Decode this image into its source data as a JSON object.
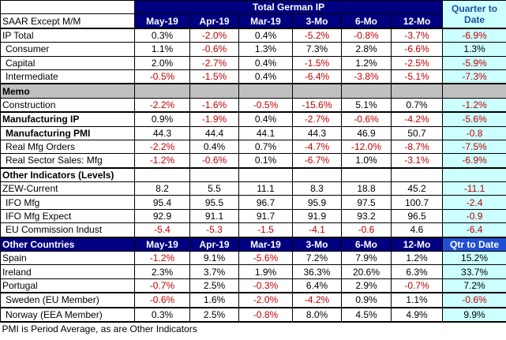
{
  "title": "Total German IP",
  "subtitle": "SAAR Except M/M",
  "columns": [
    "May-19",
    "Apr-19",
    "Mar-19",
    "3-Mo",
    "6-Mo",
    "12-Mo"
  ],
  "qtd_header": "Quarter to Date",
  "groups": [
    {
      "rows": [
        {
          "label": "IP Total",
          "values": [
            "0.3%",
            "-2.0%",
            "0.4%",
            "-5.2%",
            "-0.8%",
            "-3.7%"
          ],
          "qtd": "-6.9%"
        },
        {
          "label": "Consumer",
          "indent": true,
          "values": [
            "1.1%",
            "-0.6%",
            "1.3%",
            "7.3%",
            "2.8%",
            "-6.6%"
          ],
          "qtd": "1.3%"
        },
        {
          "label": "Capital",
          "indent": true,
          "values": [
            "2.0%",
            "-2.7%",
            "0.4%",
            "-1.5%",
            "1.2%",
            "-2.5%"
          ],
          "qtd": "-5.9%"
        },
        {
          "label": "Intermediate",
          "indent": true,
          "values": [
            "-0.5%",
            "-1.5%",
            "0.4%",
            "-6.4%",
            "-3.8%",
            "-5.1%"
          ],
          "qtd": "-7.3%"
        }
      ]
    },
    {
      "heading": "Memo",
      "heading_color": "#c0c0c0",
      "rows": [
        {
          "label": "Construction",
          "values": [
            "-2.2%",
            "-1.6%",
            "-0.5%",
            "-15.6%",
            "5.1%",
            "0.7%"
          ],
          "qtd": "-1.2%"
        }
      ]
    },
    {
      "rows": [
        {
          "label": "Manufacturing IP",
          "bold": true,
          "values": [
            "0.9%",
            "-1.9%",
            "0.4%",
            "-2.7%",
            "-0.6%",
            "-4.2%"
          ],
          "qtd": "-5.6%"
        },
        {
          "label": "Manufacturing PMI",
          "bold": true,
          "indent": true,
          "values": [
            "44.3",
            "44.4",
            "44.1",
            "44.3",
            "46.9",
            "50.7"
          ],
          "qtd": "-0.8"
        },
        {
          "label": "Real Mfg Orders",
          "indent": true,
          "values": [
            "-2.2%",
            "0.4%",
            "0.7%",
            "-4.7%",
            "-12.0%",
            "-8.7%"
          ],
          "qtd": "-7.5%"
        },
        {
          "label": "Real Sector Sales: Mfg",
          "indent": true,
          "values": [
            "-1.2%",
            "-0.6%",
            "0.1%",
            "-6.7%",
            "1.0%",
            "-3.1%"
          ],
          "qtd": "-6.9%"
        }
      ]
    },
    {
      "heading": "Other Indicators (Levels)",
      "rows": [
        {
          "label": "ZEW-Current",
          "values": [
            "8.2",
            "5.5",
            "11.1",
            "8.3",
            "18.8",
            "45.2"
          ],
          "qtd": "-11.1"
        },
        {
          "label": "IFO Mfg",
          "indent": true,
          "values": [
            "95.4",
            "95.5",
            "96.7",
            "95.9",
            "97.5",
            "100.7"
          ],
          "qtd": "-2.4"
        },
        {
          "label": "IFO Mfg Expect",
          "indent": true,
          "values": [
            "92.9",
            "91.1",
            "91.7",
            "91.9",
            "93.2",
            "96.5"
          ],
          "qtd": "-0.9"
        },
        {
          "label": "EU Commission Indust",
          "indent": true,
          "values": [
            "-5.4",
            "-5.3",
            "-1.5",
            "-4.1",
            "-0.6",
            "4.6"
          ],
          "qtd": "-6.4"
        }
      ]
    },
    {
      "heading": "Other Countries",
      "heading_color": "#000080",
      "columns": [
        "May-19",
        "Apr-19",
        "Mar-19",
        "3-Mo",
        "6-Mo",
        "12-Mo"
      ],
      "qtd_header": "Qtr to Date",
      "rows": [
        {
          "label": "Spain",
          "values": [
            "-1.2%",
            "9.1%",
            "-5.6%",
            "7.2%",
            "7.9%",
            "1.2%"
          ],
          "qtd": "15.2%"
        },
        {
          "label": "Ireland",
          "values": [
            "2.3%",
            "3.7%",
            "1.9%",
            "36.3%",
            "20.6%",
            "6.3%"
          ],
          "qtd": "33.7%"
        },
        {
          "label": "Portugal",
          "values": [
            "-0.7%",
            "2.5%",
            "-0.3%",
            "6.4%",
            "2.9%",
            "-0.7%"
          ],
          "qtd": "7.2%"
        }
      ]
    },
    {
      "rows": [
        {
          "label": "Sweden (EU Member)",
          "indent": true,
          "values": [
            "-0.6%",
            "1.6%",
            "-2.0%",
            "-4.2%",
            "0.9%",
            "1.1%"
          ],
          "qtd": "-0.6%"
        }
      ]
    },
    {
      "rows": [
        {
          "label": "Norway (EEA Member)",
          "indent": true,
          "values": [
            "0.3%",
            "2.5%",
            "-0.8%",
            "8.0%",
            "4.5%",
            "4.9%"
          ],
          "qtd": "9.9%"
        }
      ]
    }
  ],
  "footnote": "PMI is Period Average, as are Other Indicators"
}
